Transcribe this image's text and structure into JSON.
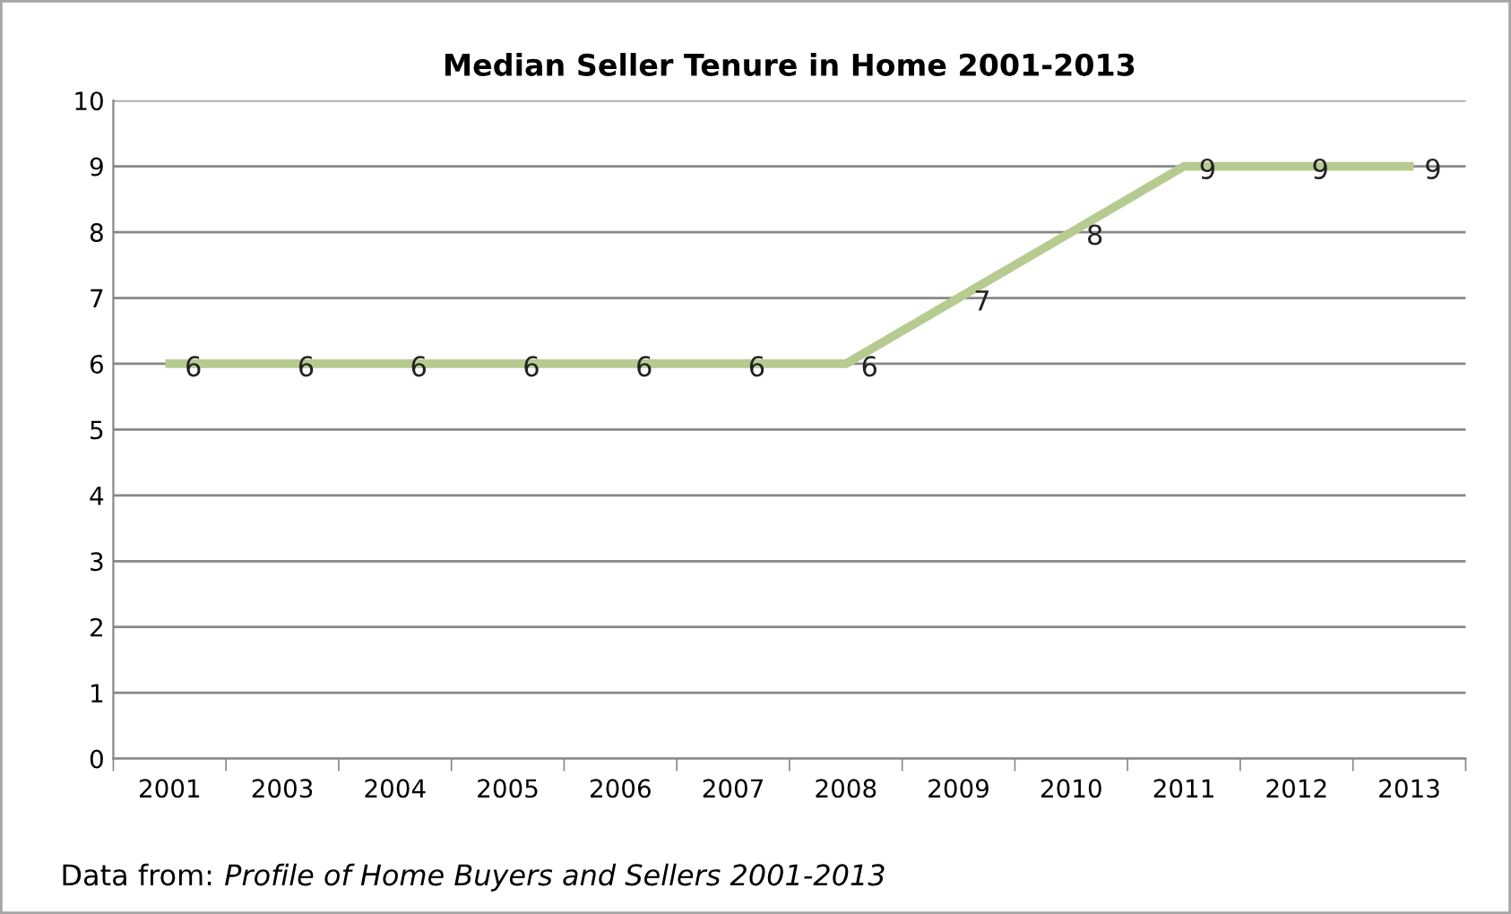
{
  "chart_data": {
    "type": "line",
    "title": "Median Seller Tenure in Home 2001-2013",
    "categories": [
      "2001",
      "2003",
      "2004",
      "2005",
      "2006",
      "2007",
      "2008",
      "2009",
      "2010",
      "2011",
      "2012",
      "2013"
    ],
    "series": [
      {
        "color": "#b7cb91",
        "values": [
          6,
          6,
          6,
          6,
          6,
          6,
          6,
          7,
          8,
          9,
          9,
          9
        ]
      }
    ],
    "ylim": [
      0,
      10
    ],
    "yticks": [
      0,
      1,
      2,
      3,
      4,
      5,
      6,
      7,
      8,
      9,
      10
    ],
    "grid": "y",
    "data_labels": true,
    "marker": "none",
    "line_style": "solid",
    "legend": false,
    "annotations": [
      "Data from: ",
      "Profile of Home Buyers and Sellers 2001-2013"
    ]
  }
}
